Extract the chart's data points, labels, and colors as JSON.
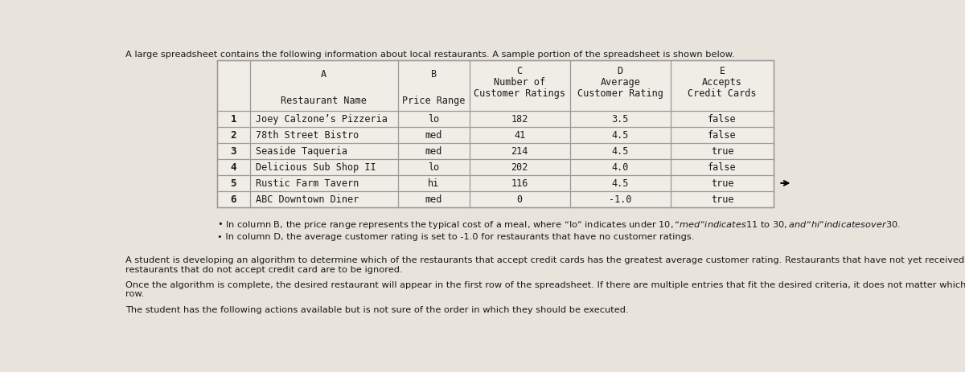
{
  "title": "A large spreadsheet contains the following information about local restaurants. A sample portion of the spreadsheet is shown below.",
  "row_labels": [
    "1",
    "2",
    "3",
    "4",
    "5",
    "6"
  ],
  "table_data": [
    [
      "Joey Calzone’s Pizzeria",
      "lo",
      "182",
      "3.5",
      "false"
    ],
    [
      "78th Street Bistro",
      "med",
      "41",
      "4.5",
      "false"
    ],
    [
      "Seaside Taqueria",
      "med",
      "214",
      "4.5",
      "true"
    ],
    [
      "Delicious Sub Shop II",
      "lo",
      "202",
      "4.0",
      "false"
    ],
    [
      "Rustic Farm Tavern",
      "hi",
      "116",
      "4.5",
      "true"
    ],
    [
      "ABC Downtown Diner",
      "med",
      "0",
      "-1.0",
      "true"
    ]
  ],
  "bullet1": "In column B, the price range represents the typical cost of a meal, where “lo” indicates under $10, “med” indicates $11 to $30, and “hi” indicates over $30.",
  "bullet2": "In column D, the average customer rating is set to -1.0 for restaurants that have no customer ratings.",
  "paragraph1": "A student is developing an algorithm to determine which of the restaurants that accept credit cards has the greatest average customer rating. Restaurants that have not yet received any customer ratings and restaurants that do not accept credit card are to be ignored.",
  "paragraph2": "Once the algorithm is complete, the desired restaurant will appear in the first row of the spreadsheet. If there are multiple entries that fit the desired criteria, it does not matter which of them appears in the first row.",
  "paragraph3": "The student has the following actions available but is not sure of the order in which they should be executed.",
  "bg_color": "#e8e4dc",
  "table_bg": "#f0ede6",
  "grid_color": "#999999",
  "font_color": "#1a1a1a"
}
